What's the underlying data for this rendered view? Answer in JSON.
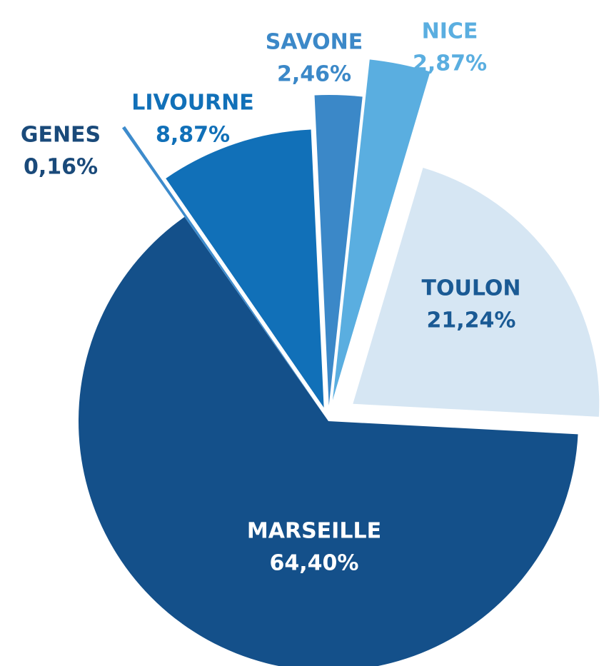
{
  "chart_data": {
    "type": "pie",
    "categories": [
      "MARSEILLE",
      "GENES",
      "LIVOURNE",
      "SAVONE",
      "NICE",
      "TOULON"
    ],
    "values": [
      64.4,
      0.16,
      8.87,
      2.46,
      2.87,
      21.24
    ],
    "value_labels": [
      "64,40%",
      "0,16%",
      "8,87%",
      "2,46%",
      "2,87%",
      "21,24%"
    ],
    "colors": [
      "#14508a",
      "#3d8bcc",
      "#1170b8",
      "#3b88c8",
      "#5aaee0",
      "#d6e6f3"
    ]
  }
}
